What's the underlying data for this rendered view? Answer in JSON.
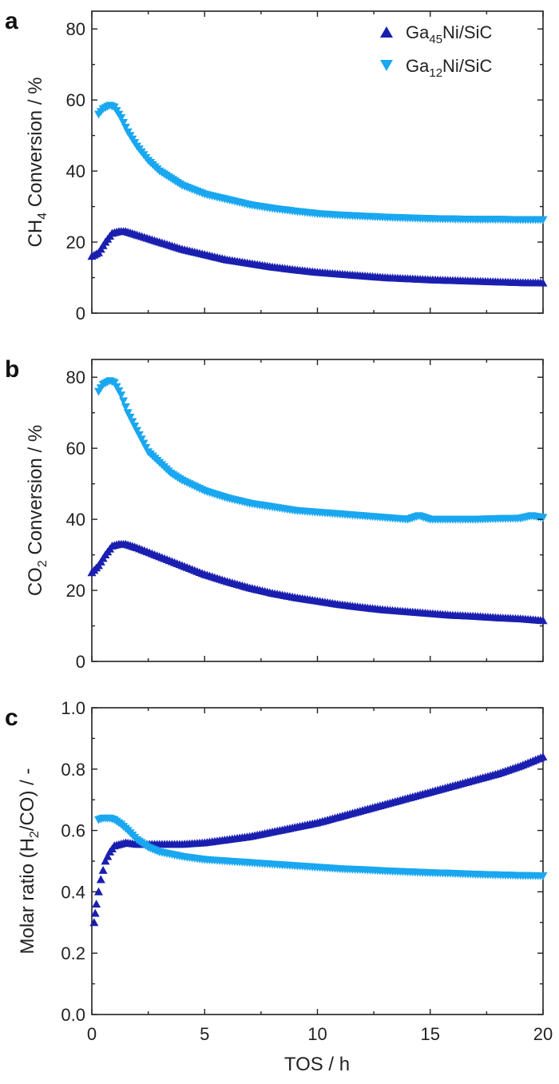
{
  "colors": {
    "series1": "#1a1fb0",
    "series2": "#19a7f0",
    "axis": "#222222"
  },
  "legend": {
    "items": [
      {
        "base": "Ga",
        "sub": "45",
        "rest": "Ni/SiC",
        "marker": "triangle-up"
      },
      {
        "base": "Ga",
        "sub": "12",
        "rest": "Ni/SiC",
        "marker": "triangle-down"
      }
    ]
  },
  "x_axis": {
    "label": "TOS / h",
    "ticks": [
      "0",
      "5",
      "10",
      "15",
      "20"
    ],
    "lim": [
      0,
      20
    ]
  },
  "chart_data": [
    {
      "type": "scatter",
      "panel_label": "a",
      "ylabel": {
        "pre": "CH",
        "sub": "4",
        "post": " Conversion / %"
      },
      "ylim": [
        0,
        85
      ],
      "yticks": [
        0,
        20,
        40,
        60,
        80
      ],
      "ytick_labels": [
        "0",
        "20",
        "40",
        "60",
        "80"
      ],
      "series": [
        {
          "name": "Ga45Ni/SiC",
          "marker": "triangle-up",
          "points": [
            [
              0.0,
              16
            ],
            [
              0.3,
              17
            ],
            [
              0.6,
              20
            ],
            [
              0.9,
              22.5
            ],
            [
              1.2,
              23
            ],
            [
              1.5,
              23
            ],
            [
              2,
              22
            ],
            [
              3,
              20
            ],
            [
              4,
              18
            ],
            [
              5,
              16.5
            ],
            [
              6,
              15
            ],
            [
              7,
              14
            ],
            [
              8,
              13
            ],
            [
              9,
              12.2
            ],
            [
              10,
              11.5
            ],
            [
              11,
              11
            ],
            [
              12,
              10.5
            ],
            [
              13,
              10
            ],
            [
              14,
              9.7
            ],
            [
              15,
              9.4
            ],
            [
              16,
              9.2
            ],
            [
              17,
              9
            ],
            [
              18,
              8.8
            ],
            [
              19,
              8.6
            ],
            [
              20,
              8.5
            ]
          ]
        },
        {
          "name": "Ga12Ni/SiC",
          "marker": "triangle-down",
          "points": [
            [
              0.3,
              56
            ],
            [
              0.5,
              57.5
            ],
            [
              0.8,
              58.5
            ],
            [
              1.0,
              58
            ],
            [
              1.3,
              55
            ],
            [
              1.6,
              51
            ],
            [
              2,
              47
            ],
            [
              2.5,
              43
            ],
            [
              3,
              40
            ],
            [
              3.5,
              38
            ],
            [
              4,
              36
            ],
            [
              5,
              33.5
            ],
            [
              6,
              32
            ],
            [
              7,
              30.5
            ],
            [
              8,
              29.5
            ],
            [
              9,
              28.7
            ],
            [
              10,
              28
            ],
            [
              11,
              27.6
            ],
            [
              12,
              27.3
            ],
            [
              13,
              27
            ],
            [
              14,
              26.8
            ],
            [
              15,
              26.6
            ],
            [
              16,
              26.5
            ],
            [
              17,
              26.4
            ],
            [
              18,
              26.4
            ],
            [
              19,
              26.3
            ],
            [
              20,
              26.3
            ]
          ]
        }
      ]
    },
    {
      "type": "scatter",
      "panel_label": "b",
      "ylabel": {
        "pre": "CO",
        "sub": "2",
        "post": " Conversion / %"
      },
      "ylim": [
        0,
        85
      ],
      "yticks": [
        0,
        20,
        40,
        60,
        80
      ],
      "ytick_labels": [
        "0",
        "20",
        "40",
        "60",
        "80"
      ],
      "series": [
        {
          "name": "Ga45Ni/SiC",
          "marker": "triangle-up",
          "points": [
            [
              0.0,
              25
            ],
            [
              0.3,
              27
            ],
            [
              0.6,
              30
            ],
            [
              0.9,
              32.5
            ],
            [
              1.2,
              33
            ],
            [
              1.5,
              33
            ],
            [
              2,
              32
            ],
            [
              3,
              29.5
            ],
            [
              4,
              27
            ],
            [
              5,
              24.5
            ],
            [
              6,
              22.5
            ],
            [
              7,
              20.7
            ],
            [
              8,
              19.2
            ],
            [
              9,
              18
            ],
            [
              10,
              17
            ],
            [
              11,
              16
            ],
            [
              12,
              15.2
            ],
            [
              13,
              14.5
            ],
            [
              14,
              14
            ],
            [
              15,
              13.5
            ],
            [
              16,
              13
            ],
            [
              17,
              12.7
            ],
            [
              18,
              12.3
            ],
            [
              19,
              12
            ],
            [
              20,
              11.5
            ]
          ]
        },
        {
          "name": "Ga12Ni/SiC",
          "marker": "triangle-down",
          "points": [
            [
              0.3,
              76
            ],
            [
              0.5,
              78
            ],
            [
              0.8,
              79
            ],
            [
              1.0,
              78.5
            ],
            [
              1.3,
              75
            ],
            [
              1.6,
              70
            ],
            [
              2,
              65
            ],
            [
              2.5,
              59
            ],
            [
              3,
              56
            ],
            [
              3.5,
              53
            ],
            [
              4,
              51
            ],
            [
              5,
              48
            ],
            [
              6,
              46
            ],
            [
              7,
              44.5
            ],
            [
              8,
              43.5
            ],
            [
              9,
              42.5
            ],
            [
              10,
              42
            ],
            [
              11,
              41.5
            ],
            [
              12,
              41
            ],
            [
              13,
              40.5
            ],
            [
              14,
              40
            ],
            [
              14.5,
              41
            ],
            [
              15,
              40
            ],
            [
              16,
              40
            ],
            [
              17,
              40
            ],
            [
              18,
              40.2
            ],
            [
              19,
              40.3
            ],
            [
              19.5,
              41
            ],
            [
              20,
              40.5
            ]
          ]
        }
      ]
    },
    {
      "type": "scatter",
      "panel_label": "c",
      "ylabel": {
        "pre": "Molar ratio (H",
        "sub": "2",
        "post": "/CO) / -"
      },
      "ylim": [
        0,
        1.0
      ],
      "yticks": [
        0,
        0.2,
        0.4,
        0.6,
        0.8,
        1.0
      ],
      "ytick_labels": [
        "0.0",
        "0.2",
        "0.4",
        "0.6",
        "0.8",
        "1.0"
      ],
      "series": [
        {
          "name": "Ga45Ni/SiC",
          "marker": "triangle-up",
          "points": [
            [
              0.1,
              0.3
            ],
            [
              0.15,
              0.33
            ],
            [
              0.2,
              0.36
            ],
            [
              0.3,
              0.4
            ],
            [
              0.4,
              0.44
            ],
            [
              0.5,
              0.47
            ],
            [
              0.6,
              0.5
            ],
            [
              0.8,
              0.53
            ],
            [
              1.0,
              0.55
            ],
            [
              1.5,
              0.56
            ],
            [
              2,
              0.555
            ],
            [
              3,
              0.555
            ],
            [
              4,
              0.555
            ],
            [
              5,
              0.56
            ],
            [
              6,
              0.57
            ],
            [
              7,
              0.58
            ],
            [
              8,
              0.595
            ],
            [
              9,
              0.61
            ],
            [
              10,
              0.625
            ],
            [
              11,
              0.645
            ],
            [
              12,
              0.665
            ],
            [
              13,
              0.685
            ],
            [
              14,
              0.705
            ],
            [
              15,
              0.725
            ],
            [
              16,
              0.745
            ],
            [
              17,
              0.765
            ],
            [
              18,
              0.785
            ],
            [
              19,
              0.81
            ],
            [
              20,
              0.84
            ]
          ]
        },
        {
          "name": "Ga12Ni/SiC",
          "marker": "triangle-down",
          "points": [
            [
              0.3,
              0.635
            ],
            [
              0.5,
              0.64
            ],
            [
              0.8,
              0.64
            ],
            [
              1.0,
              0.635
            ],
            [
              1.3,
              0.62
            ],
            [
              1.6,
              0.6
            ],
            [
              2,
              0.57
            ],
            [
              2.5,
              0.545
            ],
            [
              3,
              0.53
            ],
            [
              4,
              0.515
            ],
            [
              5,
              0.505
            ],
            [
              6,
              0.5
            ],
            [
              7,
              0.495
            ],
            [
              8,
              0.49
            ],
            [
              9,
              0.485
            ],
            [
              10,
              0.48
            ],
            [
              11,
              0.475
            ],
            [
              12,
              0.472
            ],
            [
              13,
              0.468
            ],
            [
              14,
              0.465
            ],
            [
              15,
              0.462
            ],
            [
              16,
              0.46
            ],
            [
              17,
              0.457
            ],
            [
              18,
              0.455
            ],
            [
              19,
              0.453
            ],
            [
              20,
              0.452
            ]
          ]
        }
      ]
    }
  ]
}
